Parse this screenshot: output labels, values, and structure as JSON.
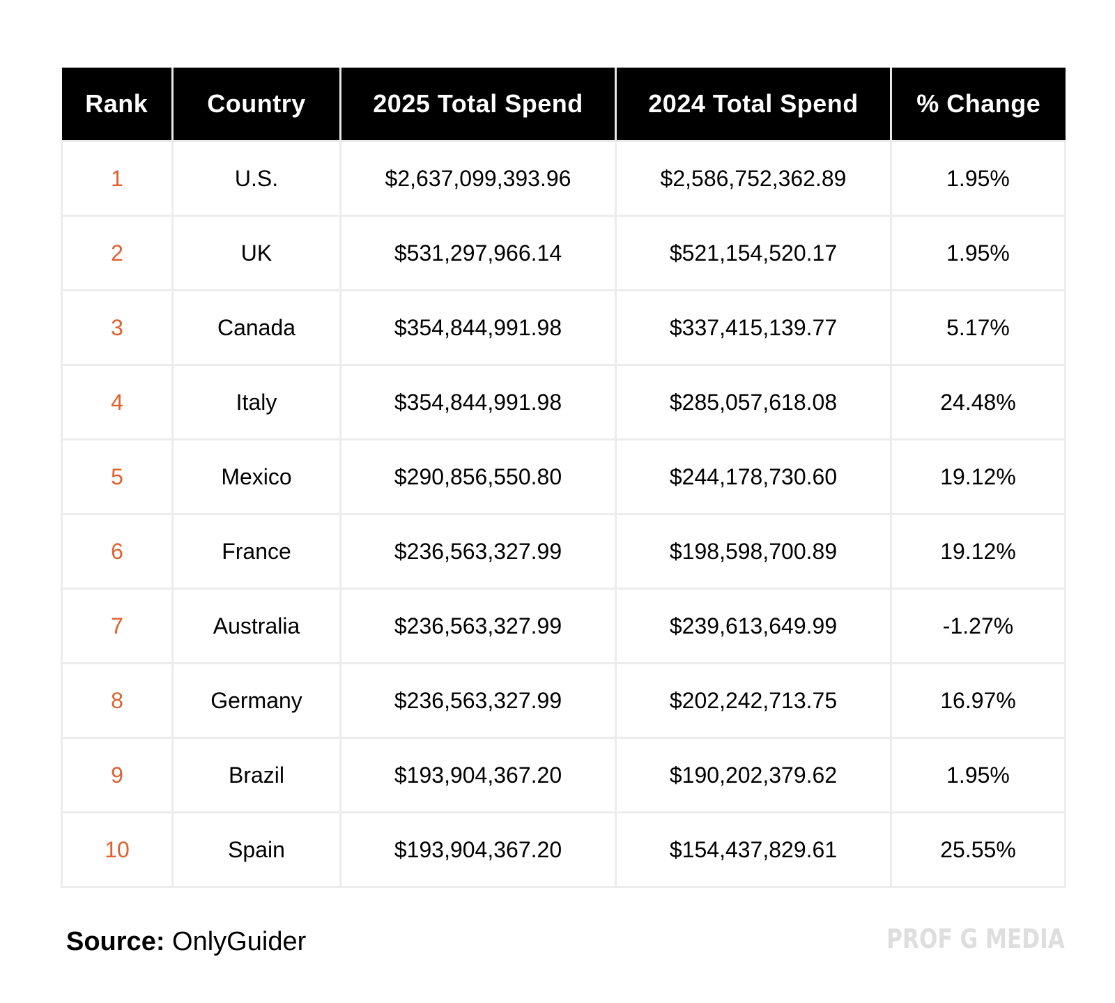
{
  "chart_data": {
    "type": "table",
    "columns": [
      "Rank",
      "Country",
      "2025 Total Spend",
      "2024 Total Spend",
      "% Change"
    ],
    "rows": [
      {
        "rank": "1",
        "country": "U.S.",
        "spend_2025": "$2,637,099,393.96",
        "spend_2024": "$2,586,752,362.89",
        "change": "1.95%"
      },
      {
        "rank": "2",
        "country": "UK",
        "spend_2025": "$531,297,966.14",
        "spend_2024": "$521,154,520.17",
        "change": "1.95%"
      },
      {
        "rank": "3",
        "country": "Canada",
        "spend_2025": "$354,844,991.98",
        "spend_2024": "$337,415,139.77",
        "change": "5.17%"
      },
      {
        "rank": "4",
        "country": "Italy",
        "spend_2025": "$354,844,991.98",
        "spend_2024": "$285,057,618.08",
        "change": "24.48%"
      },
      {
        "rank": "5",
        "country": "Mexico",
        "spend_2025": "$290,856,550.80",
        "spend_2024": "$244,178,730.60",
        "change": "19.12%"
      },
      {
        "rank": "6",
        "country": "France",
        "spend_2025": "$236,563,327.99",
        "spend_2024": "$198,598,700.89",
        "change": "19.12%"
      },
      {
        "rank": "7",
        "country": "Australia",
        "spend_2025": "$236,563,327.99",
        "spend_2024": "$239,613,649.99",
        "change": "-1.27%"
      },
      {
        "rank": "8",
        "country": "Germany",
        "spend_2025": "$236,563,327.99",
        "spend_2024": "$202,242,713.75",
        "change": "16.97%"
      },
      {
        "rank": "9",
        "country": "Brazil",
        "spend_2025": "$193,904,367.20",
        "spend_2024": "$190,202,379.62",
        "change": "1.95%"
      },
      {
        "rank": "10",
        "country": "Spain",
        "spend_2025": "$193,904,367.20",
        "spend_2024": "$154,437,829.61",
        "change": "25.55%"
      }
    ]
  },
  "source": {
    "label": "Source:",
    "value": "OnlyGuider"
  },
  "brand": "PROF G MEDIA",
  "colors": {
    "header_bg": "#000000",
    "header_text": "#ffffff",
    "rank_text": "#e0612f",
    "grid_line": "#ececec",
    "brand_text": "#dedede"
  }
}
